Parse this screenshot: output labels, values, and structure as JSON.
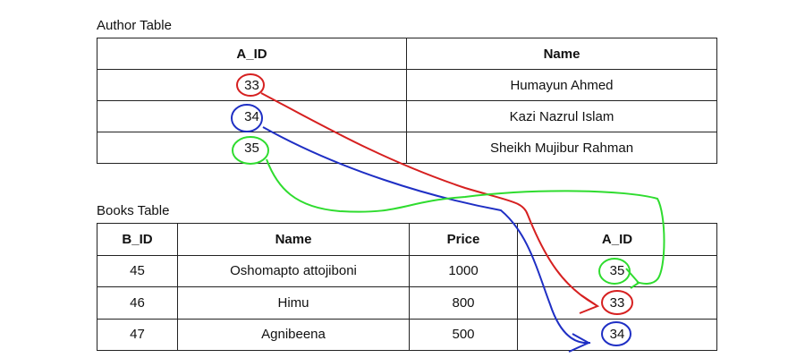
{
  "author_table": {
    "title": "Author Table",
    "headers": [
      "A_ID",
      "Name"
    ],
    "rows": [
      [
        33,
        "Humayun Ahmed"
      ],
      [
        34,
        "Kazi Nazrul Islam"
      ],
      [
        35,
        "Sheikh Mujibur Rahman"
      ]
    ]
  },
  "books_table": {
    "title": "Books Table",
    "headers": [
      "B_ID",
      "Name",
      "Price",
      "A_ID"
    ],
    "rows": [
      [
        45,
        "Oshomapto attojiboni",
        1000,
        35
      ],
      [
        46,
        "Himu",
        800,
        33
      ],
      [
        47,
        "Agnibeena",
        500,
        34
      ]
    ]
  }
}
